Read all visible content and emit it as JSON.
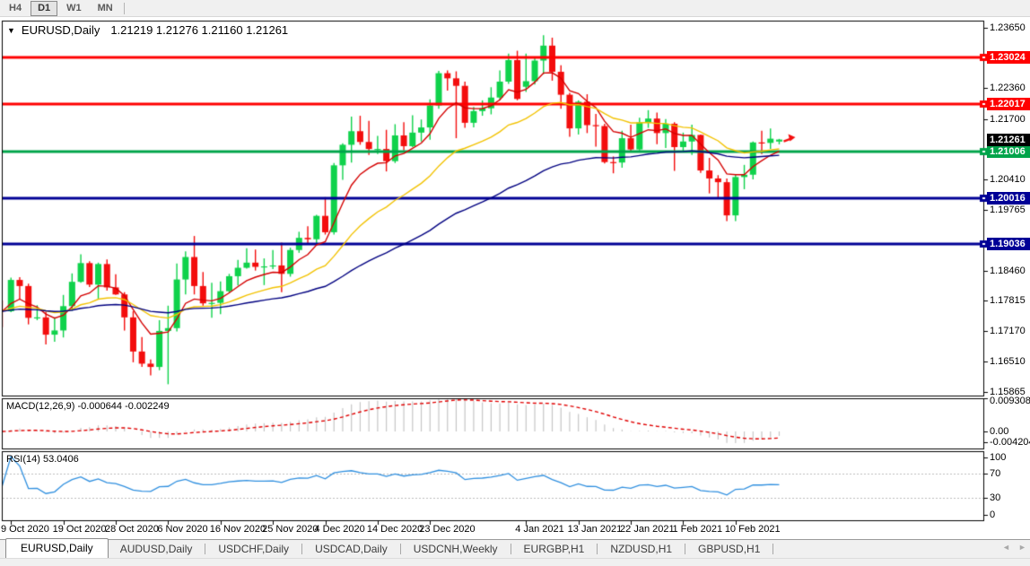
{
  "toolbar": {
    "buttons": [
      {
        "label": "H4",
        "active": false
      },
      {
        "label": "D1",
        "active": true
      },
      {
        "label": "W1",
        "active": false
      },
      {
        "label": "MN",
        "active": false
      }
    ]
  },
  "chart_data": {
    "type": "candlestick",
    "symbol": "EURUSD",
    "timeframe": "Daily",
    "title_symbol": "EURUSD,Daily",
    "title_ohlc": "1.21219 1.21276 1.21160 1.21261",
    "bull_color": "#0fd24b",
    "bear_color": "#f30d0d",
    "ohlc": [
      [
        1.1762,
        1.1782,
        1.1725,
        1.1759
      ],
      [
        1.1759,
        1.1831,
        1.1757,
        1.1826
      ],
      [
        1.1826,
        1.1832,
        1.1786,
        1.1813
      ],
      [
        1.1813,
        1.1818,
        1.1731,
        1.1745
      ],
      [
        1.1745,
        1.1772,
        1.174,
        1.1746
      ],
      [
        1.1746,
        1.1758,
        1.1688,
        1.1709
      ],
      [
        1.1709,
        1.1746,
        1.1694,
        1.1718
      ],
      [
        1.1718,
        1.1794,
        1.1703,
        1.177
      ],
      [
        1.177,
        1.184,
        1.176,
        1.1822
      ],
      [
        1.1822,
        1.1881,
        1.182,
        1.1862
      ],
      [
        1.1862,
        1.1866,
        1.1811,
        1.1816
      ],
      [
        1.1816,
        1.1863,
        1.1786,
        1.186
      ],
      [
        1.186,
        1.187,
        1.1803,
        1.181
      ],
      [
        1.181,
        1.1838,
        1.1794,
        1.1795
      ],
      [
        1.1795,
        1.18,
        1.1718,
        1.1746
      ],
      [
        1.1746,
        1.1759,
        1.165,
        1.1673
      ],
      [
        1.1673,
        1.1704,
        1.164,
        1.1647
      ],
      [
        1.1647,
        1.1656,
        1.1622,
        1.164
      ],
      [
        1.164,
        1.174,
        1.1633,
        1.1717
      ],
      [
        1.1717,
        1.1771,
        1.1603,
        1.1723
      ],
      [
        1.1723,
        1.1861,
        1.1716,
        1.1827
      ],
      [
        1.1827,
        1.1887,
        1.1795,
        1.1875
      ],
      [
        1.1875,
        1.192,
        1.1795,
        1.1813
      ],
      [
        1.1813,
        1.1843,
        1.1771,
        1.1776
      ],
      [
        1.1776,
        1.182,
        1.1745,
        1.1777
      ],
      [
        1.1777,
        1.1823,
        1.1753,
        1.1802
      ],
      [
        1.1802,
        1.1839,
        1.1799,
        1.1834
      ],
      [
        1.1834,
        1.1869,
        1.1814,
        1.1852
      ],
      [
        1.1852,
        1.1894,
        1.185,
        1.1863
      ],
      [
        1.1863,
        1.1891,
        1.1846,
        1.1854
      ],
      [
        1.1854,
        1.1872,
        1.1815,
        1.1855
      ],
      [
        1.1855,
        1.189,
        1.1849,
        1.1857
      ],
      [
        1.1857,
        1.1906,
        1.18,
        1.1839
      ],
      [
        1.1839,
        1.1895,
        1.1833,
        1.189
      ],
      [
        1.189,
        1.1929,
        1.1884,
        1.1916
      ],
      [
        1.1916,
        1.1941,
        1.1905,
        1.1913
      ],
      [
        1.1913,
        1.1965,
        1.1903,
        1.1963
      ],
      [
        1.1963,
        1.2003,
        1.1923,
        1.1928
      ],
      [
        1.1928,
        1.2076,
        1.1923,
        1.2071
      ],
      [
        1.2071,
        1.2118,
        1.204,
        1.2115
      ],
      [
        1.2115,
        1.2175,
        1.2077,
        1.2144
      ],
      [
        1.2144,
        1.2177,
        1.2115,
        1.2121
      ],
      [
        1.2121,
        1.2166,
        1.2093,
        1.2106
      ],
      [
        1.2106,
        1.2134,
        1.2095,
        1.2106
      ],
      [
        1.2106,
        1.2147,
        1.2058,
        1.208
      ],
      [
        1.208,
        1.2159,
        1.2076,
        1.2135
      ],
      [
        1.2135,
        1.2163,
        1.2103,
        1.2112
      ],
      [
        1.2112,
        1.2178,
        1.211,
        1.2141
      ],
      [
        1.2141,
        1.2169,
        1.2122,
        1.2152
      ],
      [
        1.2152,
        1.2212,
        1.2126,
        1.2199
      ],
      [
        1.2199,
        1.2273,
        1.2192,
        1.2268
      ],
      [
        1.2268,
        1.2274,
        1.2231,
        1.2257
      ],
      [
        1.2257,
        1.2272,
        1.2129,
        1.2241
      ],
      [
        1.2241,
        1.225,
        1.2151,
        1.2162
      ],
      [
        1.2162,
        1.2196,
        1.2152,
        1.2187
      ],
      [
        1.2187,
        1.221,
        1.2177,
        1.2193
      ],
      [
        1.2193,
        1.2238,
        1.218,
        1.2216
      ],
      [
        1.2216,
        1.2274,
        1.221,
        1.225
      ],
      [
        1.225,
        1.231,
        1.2245,
        1.2296
      ],
      [
        1.2296,
        1.2316,
        1.221,
        1.2213
      ],
      [
        1.2239,
        1.231,
        1.2228,
        1.2251
      ],
      [
        1.2251,
        1.2302,
        1.2244,
        1.2295
      ],
      [
        1.2295,
        1.2349,
        1.2266,
        1.2327
      ],
      [
        1.2327,
        1.2344,
        1.2252,
        1.2271
      ],
      [
        1.2271,
        1.2285,
        1.2192,
        1.2222
      ],
      [
        1.2222,
        1.2226,
        1.2132,
        1.215
      ],
      [
        1.215,
        1.221,
        1.2137,
        1.2207
      ],
      [
        1.2207,
        1.2223,
        1.214,
        1.2157
      ],
      [
        1.2157,
        1.2181,
        1.2111,
        1.2155
      ],
      [
        1.2155,
        1.216,
        1.2075,
        1.2078
      ],
      [
        1.2078,
        1.209,
        1.2054,
        1.2077
      ],
      [
        1.2077,
        1.2145,
        1.2066,
        1.2129
      ],
      [
        1.2129,
        1.2158,
        1.2102,
        1.2105
      ],
      [
        1.2105,
        1.2173,
        1.2103,
        1.2163
      ],
      [
        1.2163,
        1.2189,
        1.2151,
        1.2171
      ],
      [
        1.2171,
        1.2184,
        1.2116,
        1.214
      ],
      [
        1.214,
        1.217,
        1.2108,
        1.216
      ],
      [
        1.216,
        1.2163,
        1.2059,
        1.211
      ],
      [
        1.211,
        1.2141,
        1.21,
        1.2122
      ],
      [
        1.2122,
        1.2158,
        1.2093,
        1.2136
      ],
      [
        1.2136,
        1.2137,
        1.2055,
        1.206
      ],
      [
        1.206,
        1.2087,
        1.2011,
        1.2043
      ],
      [
        1.2043,
        1.205,
        1.1999,
        1.2035
      ],
      [
        1.2035,
        1.2043,
        1.1952,
        1.1964
      ],
      [
        1.1964,
        1.2052,
        1.1952,
        1.2046
      ],
      [
        1.2046,
        1.2072,
        1.202,
        1.2051
      ],
      [
        1.2051,
        1.2122,
        1.2041,
        1.212
      ],
      [
        1.212,
        1.2145,
        1.2095,
        1.2119
      ],
      [
        1.2119,
        1.215,
        1.2106,
        1.2128
      ],
      [
        1.21219,
        1.21276,
        1.2116,
        1.21261
      ]
    ],
    "y_axis": {
      "ticks": [
        "1.23650",
        "1.22360",
        "1.21700",
        "1.20410",
        "1.19765",
        "1.18460",
        "1.17815",
        "1.17170",
        "1.16510",
        "1.15865"
      ],
      "tick_values": [
        1.2365,
        1.2236,
        1.217,
        1.2041,
        1.19765,
        1.1846,
        1.17815,
        1.1717,
        1.1651,
        1.15865
      ],
      "top_value": 1.23804,
      "bottom_value": 1.15788
    },
    "hlines": [
      {
        "label": "1.23024",
        "price": 1.23024,
        "color": "#ff0000"
      },
      {
        "label": "1.22017",
        "price": 1.22017,
        "color": "#ff0000"
      },
      {
        "label": "1.21006",
        "price": 1.21006,
        "color": "#00a44a"
      },
      {
        "label": "1.20016",
        "price": 1.20016,
        "color": "#000096"
      },
      {
        "label": "1.19036",
        "price": 1.19036,
        "color": "#000096"
      }
    ],
    "current_price": {
      "label": "1.21261",
      "price": 1.21261,
      "bg": "#000000",
      "arrow_color": "#f30d0d"
    },
    "moving_averages": [
      {
        "name": "fast-ma",
        "period": 7,
        "color": "#d40000"
      },
      {
        "name": "medium-ma",
        "period": 20,
        "color": "#f2c200"
      },
      {
        "name": "slow-ma",
        "period": 50,
        "color": "#000080"
      }
    ],
    "x_labels": [
      {
        "text": "9 Oct 2020",
        "bar": 1
      },
      {
        "text": "19 Oct 2020",
        "bar": 7
      },
      {
        "text": "28 Oct 2020",
        "bar": 13
      },
      {
        "text": "6 Nov 2020",
        "bar": 19
      },
      {
        "text": "16 Nov 2020",
        "bar": 25
      },
      {
        "text": "25 Nov 2020",
        "bar": 31
      },
      {
        "text": "4 Dec 2020",
        "bar": 37
      },
      {
        "text": "14 Dec 2020",
        "bar": 43
      },
      {
        "text": "23 Dec 2020",
        "bar": 49
      },
      {
        "text": "4 Jan 2021",
        "bar": 60
      },
      {
        "text": "13 Jan 2021",
        "bar": 66
      },
      {
        "text": "22 Jan 2021",
        "bar": 72
      },
      {
        "text": "1 Feb 2021",
        "bar": 78
      },
      {
        "text": "10 Feb 2021",
        "bar": 84
      }
    ],
    "macd": {
      "label": "MACD(12,26,9) -0.000644 -0.002249",
      "fast": 12,
      "slow": 26,
      "signal": 9,
      "main_value": "-0.000644",
      "signal_value": "-0.002249",
      "axis_max": "0.009308",
      "axis_zero": "0.00",
      "axis_min": "-0.004204",
      "hist_color": "#c6c6c6",
      "signal_color": "#e00000"
    },
    "rsi": {
      "label": "RSI(14) 53.0406",
      "period": 14,
      "value": "53.0406",
      "levels": [
        "100",
        "70",
        "30",
        "0"
      ],
      "line_color": "#2f8fdf",
      "level_line_color": "#bcbcbc"
    }
  },
  "tabs": {
    "items": [
      {
        "label": "EURUSD,Daily",
        "active": true
      },
      {
        "label": "AUDUSD,Daily",
        "active": false
      },
      {
        "label": "USDCHF,Daily",
        "active": false
      },
      {
        "label": "USDCAD,Daily",
        "active": false
      },
      {
        "label": "USDCNH,Weekly",
        "active": false
      },
      {
        "label": "EURGBP,H1",
        "active": false
      },
      {
        "label": "NZDUSD,H1",
        "active": false
      },
      {
        "label": "GBPUSD,H1",
        "active": false
      }
    ],
    "scroll_left": "◄",
    "scroll_right": "►"
  }
}
